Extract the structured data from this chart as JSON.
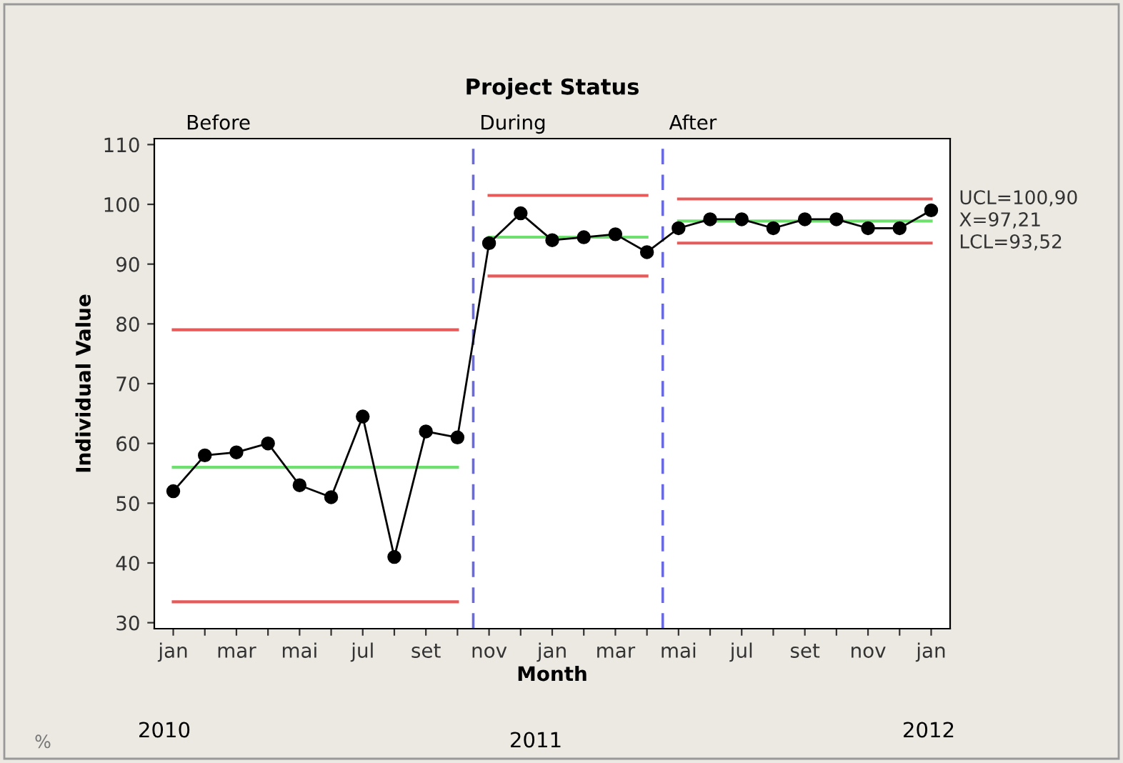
{
  "chart_data": {
    "type": "line",
    "title": "Project Status",
    "xlabel": "Month",
    "ylabel": "Individual Value",
    "categories": [
      "jan",
      null,
      "mar",
      null,
      "mai",
      null,
      "jul",
      null,
      "set",
      null,
      "nov",
      null,
      "jan",
      null,
      "mar",
      null,
      "mai",
      null,
      "jul",
      null,
      "set",
      null,
      "nov",
      null,
      "jan"
    ],
    "ylim": [
      29,
      111
    ],
    "yticks": [
      30,
      40,
      50,
      60,
      70,
      80,
      90,
      100,
      110
    ],
    "grid": false,
    "legend": false,
    "series": [
      {
        "color": "#000000",
        "marker": "circle",
        "values": [
          52,
          58,
          58.5,
          60,
          53,
          51,
          64.5,
          41,
          62,
          61,
          93.5,
          98.5,
          94,
          94.5,
          95,
          92,
          96,
          97.5,
          97.5,
          96,
          97.5,
          97.5,
          96,
          96,
          99
        ]
      },
      {
        "color": "#e85a5a",
        "marker": "none",
        "values": [
          79,
          79,
          79,
          79,
          79,
          79,
          79,
          79,
          79,
          79,
          null,
          null,
          null,
          null,
          null,
          null,
          null,
          null,
          null,
          null,
          null,
          null,
          null,
          null,
          null
        ]
      },
      {
        "color": "#6fe06f",
        "marker": "none",
        "values": [
          56,
          56,
          56,
          56,
          56,
          56,
          56,
          56,
          56,
          56,
          null,
          null,
          null,
          null,
          null,
          null,
          null,
          null,
          null,
          null,
          null,
          null,
          null,
          null,
          null
        ]
      },
      {
        "color": "#e85a5a",
        "marker": "none",
        "values": [
          33.5,
          33.5,
          33.5,
          33.5,
          33.5,
          33.5,
          33.5,
          33.5,
          33.5,
          33.5,
          null,
          null,
          null,
          null,
          null,
          null,
          null,
          null,
          null,
          null,
          null,
          null,
          null,
          null,
          null
        ]
      },
      {
        "color": "#e85a5a",
        "marker": "none",
        "values": [
          null,
          null,
          null,
          null,
          null,
          null,
          null,
          null,
          null,
          null,
          101.5,
          101.5,
          101.5,
          101.5,
          101.5,
          101.5,
          null,
          null,
          null,
          null,
          null,
          null,
          null,
          null,
          null
        ]
      },
      {
        "color": "#6fe06f",
        "marker": "none",
        "values": [
          null,
          null,
          null,
          null,
          null,
          null,
          null,
          null,
          null,
          null,
          94.5,
          94.5,
          94.5,
          94.5,
          94.5,
          94.5,
          null,
          null,
          null,
          null,
          null,
          null,
          null,
          null,
          null
        ]
      },
      {
        "color": "#e85a5a",
        "marker": "none",
        "values": [
          null,
          null,
          null,
          null,
          null,
          null,
          null,
          null,
          null,
          null,
          88,
          88,
          88,
          88,
          88,
          88,
          null,
          null,
          null,
          null,
          null,
          null,
          null,
          null,
          null
        ]
      },
      {
        "name": "UCL=100,90",
        "color": "#e85a5a",
        "marker": "none",
        "values": [
          null,
          null,
          null,
          null,
          null,
          null,
          null,
          null,
          null,
          null,
          null,
          null,
          null,
          null,
          null,
          null,
          100.9,
          100.9,
          100.9,
          100.9,
          100.9,
          100.9,
          100.9,
          100.9,
          100.9
        ]
      },
      {
        "name": "X=97,21",
        "color": "#6fe06f",
        "marker": "none",
        "values": [
          null,
          null,
          null,
          null,
          null,
          null,
          null,
          null,
          null,
          null,
          null,
          null,
          null,
          null,
          null,
          null,
          97.21,
          97.21,
          97.21,
          97.21,
          97.21,
          97.21,
          97.21,
          97.21,
          97.21
        ]
      },
      {
        "name": "LCL=93,52",
        "color": "#e85a5a",
        "marker": "none",
        "values": [
          null,
          null,
          null,
          null,
          null,
          null,
          null,
          null,
          null,
          null,
          null,
          null,
          null,
          null,
          null,
          null,
          93.52,
          93.52,
          93.52,
          93.52,
          93.52,
          93.52,
          93.52,
          93.52,
          93.52
        ]
      }
    ],
    "annotations": [
      "Before",
      "During",
      "After",
      "2010",
      "2011",
      "2012",
      "%"
    ]
  }
}
